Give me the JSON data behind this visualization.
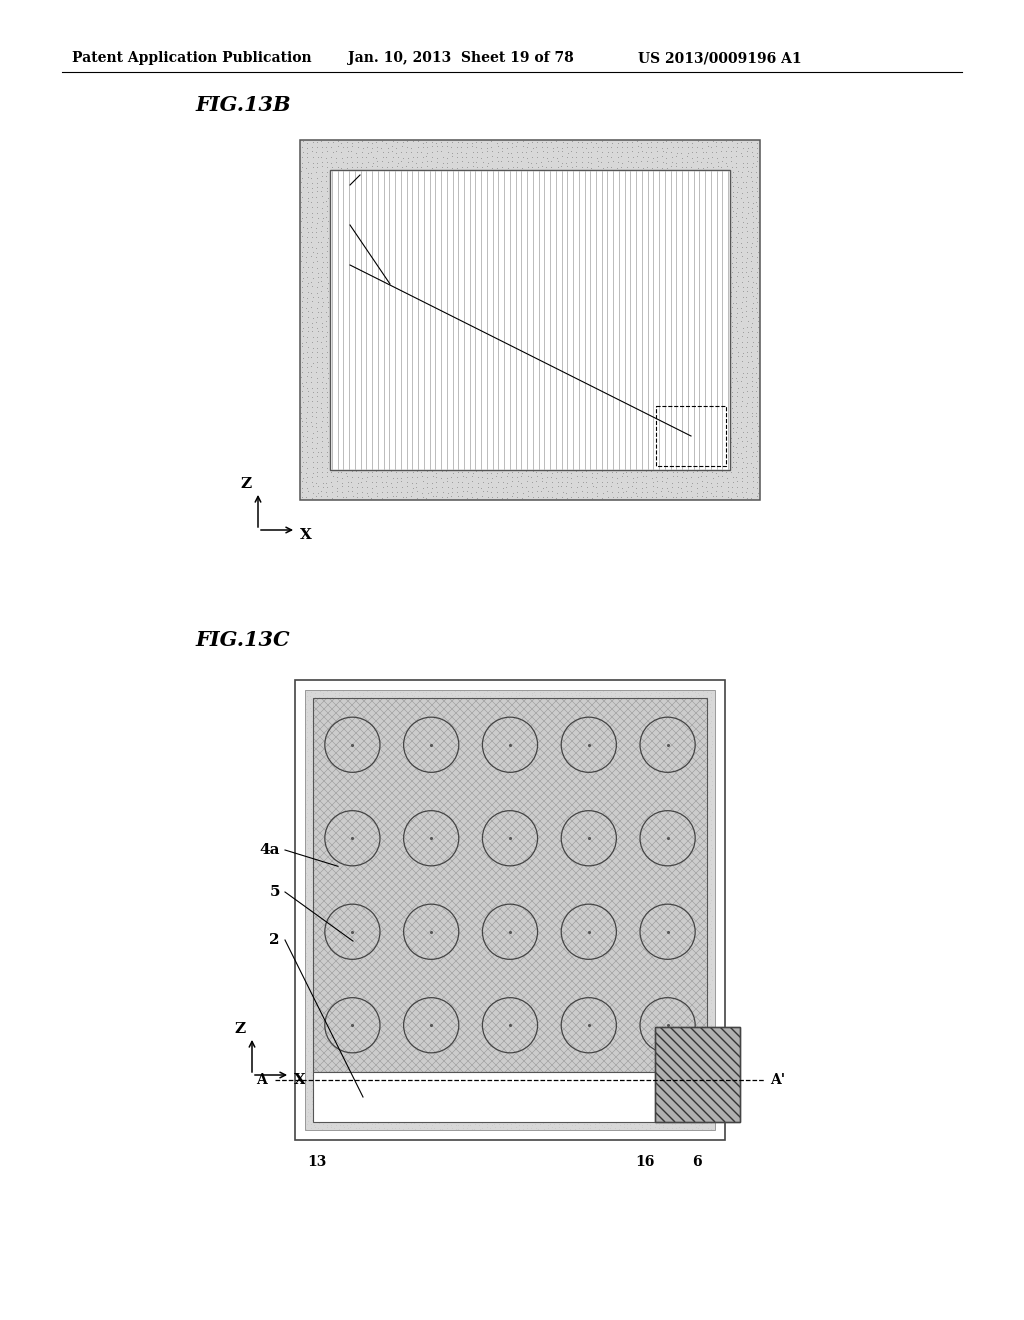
{
  "header_left": "Patent Application Publication",
  "header_mid": "Jan. 10, 2013  Sheet 19 of 78",
  "header_right": "US 2013/0009196 A1",
  "fig13b_title": "FIG.13B",
  "fig13c_title": "FIG.13C",
  "bg": "#ffffff",
  "stipple_light": "#c8c8c8",
  "stipple_dot": "#888888",
  "vline_color": "#999999",
  "mesh_color": "#aaaaaa"
}
